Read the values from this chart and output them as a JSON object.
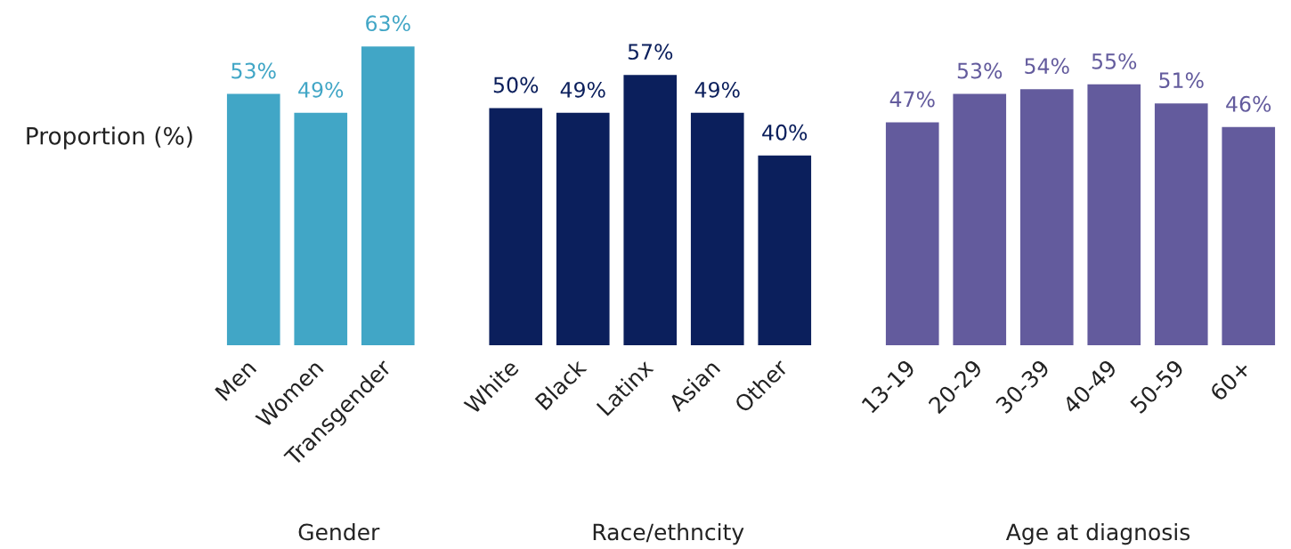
{
  "chart_data": [
    {
      "type": "bar",
      "categories": [
        "Men",
        "Women",
        "Transgender"
      ],
      "values": [
        53,
        49,
        63
      ],
      "value_labels": [
        "53%",
        "49%",
        "63%"
      ],
      "color": "#41a6c6",
      "xlabel": "Gender",
      "ylabel": "Proportion (%)",
      "tick_labels": "x"
    },
    {
      "type": "bar",
      "categories": [
        "White",
        "Black",
        "Latinx",
        "Asian",
        "Other"
      ],
      "values": [
        50,
        49,
        57,
        49,
        40
      ],
      "value_labels": [
        "50%",
        "49%",
        "57%",
        "49%",
        "40%"
      ],
      "color": "#0b1f5c",
      "xlabel": "Race/ethncity",
      "tick_labels": "x"
    },
    {
      "type": "bar",
      "categories": [
        "13-19",
        "20-29",
        "30-39",
        "40-49",
        "50-59",
        "60+"
      ],
      "values": [
        47,
        53,
        54,
        55,
        51,
        46
      ],
      "value_labels": [
        "47%",
        "53%",
        "54%",
        "55%",
        "51%",
        "46%"
      ],
      "color": "#635b9d",
      "xlabel": "Age at diagnosis",
      "tick_labels": "x"
    }
  ]
}
